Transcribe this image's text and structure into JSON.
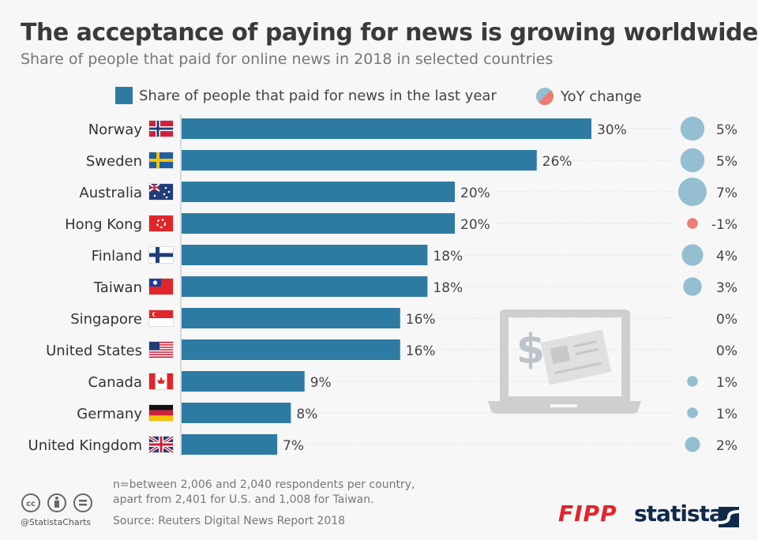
{
  "colors": {
    "bar": "#2d7ba3",
    "bubble_pos": "#94bfd1",
    "bubble_neg": "#ef7b72",
    "text": "#333333",
    "fipp": "#e3232b",
    "statista": "#0f2a4a"
  },
  "chart_data": {
    "type": "bar",
    "orientation": "horizontal",
    "title": "The acceptance of paying for news is growing worldwide",
    "subtitle": "Share of people that paid for online news in 2018 in selected countries",
    "categories": [
      "Norway",
      "Sweden",
      "Australia",
      "Hong Kong",
      "Finland",
      "Taiwan",
      "Singapore",
      "United States",
      "Canada",
      "Germany",
      "United Kingdom"
    ],
    "series": [
      {
        "name": "Share of people that paid for news in the last year",
        "values": [
          30,
          26,
          20,
          20,
          18,
          18,
          16,
          16,
          9,
          8,
          7
        ],
        "labels": [
          "30%",
          "26%",
          "20%",
          "20%",
          "18%",
          "18%",
          "16%",
          "16%",
          "9%",
          "8%",
          "7%"
        ]
      },
      {
        "name": "YoY change",
        "type": "bubble",
        "values": [
          5,
          5,
          7,
          -1,
          4,
          3,
          0,
          0,
          1,
          1,
          2
        ],
        "labels": [
          "5%",
          "5%",
          "7%",
          "-1%",
          "4%",
          "3%",
          "0%",
          "0%",
          "1%",
          "1%",
          "2%"
        ]
      }
    ],
    "xlim": [
      0,
      30
    ],
    "legend_placement": "top",
    "grid": false
  },
  "footer": {
    "note_line1": "n=between 2,006 and 2,040 respondents per country,",
    "note_line2": "apart from 2,401 for U.S. and 1,008 for Taiwan.",
    "source": "Source: Reuters Digital News Report 2018",
    "handle": "@StatistaCharts",
    "logo_fipp": "FIPP",
    "logo_statista": "statista"
  }
}
